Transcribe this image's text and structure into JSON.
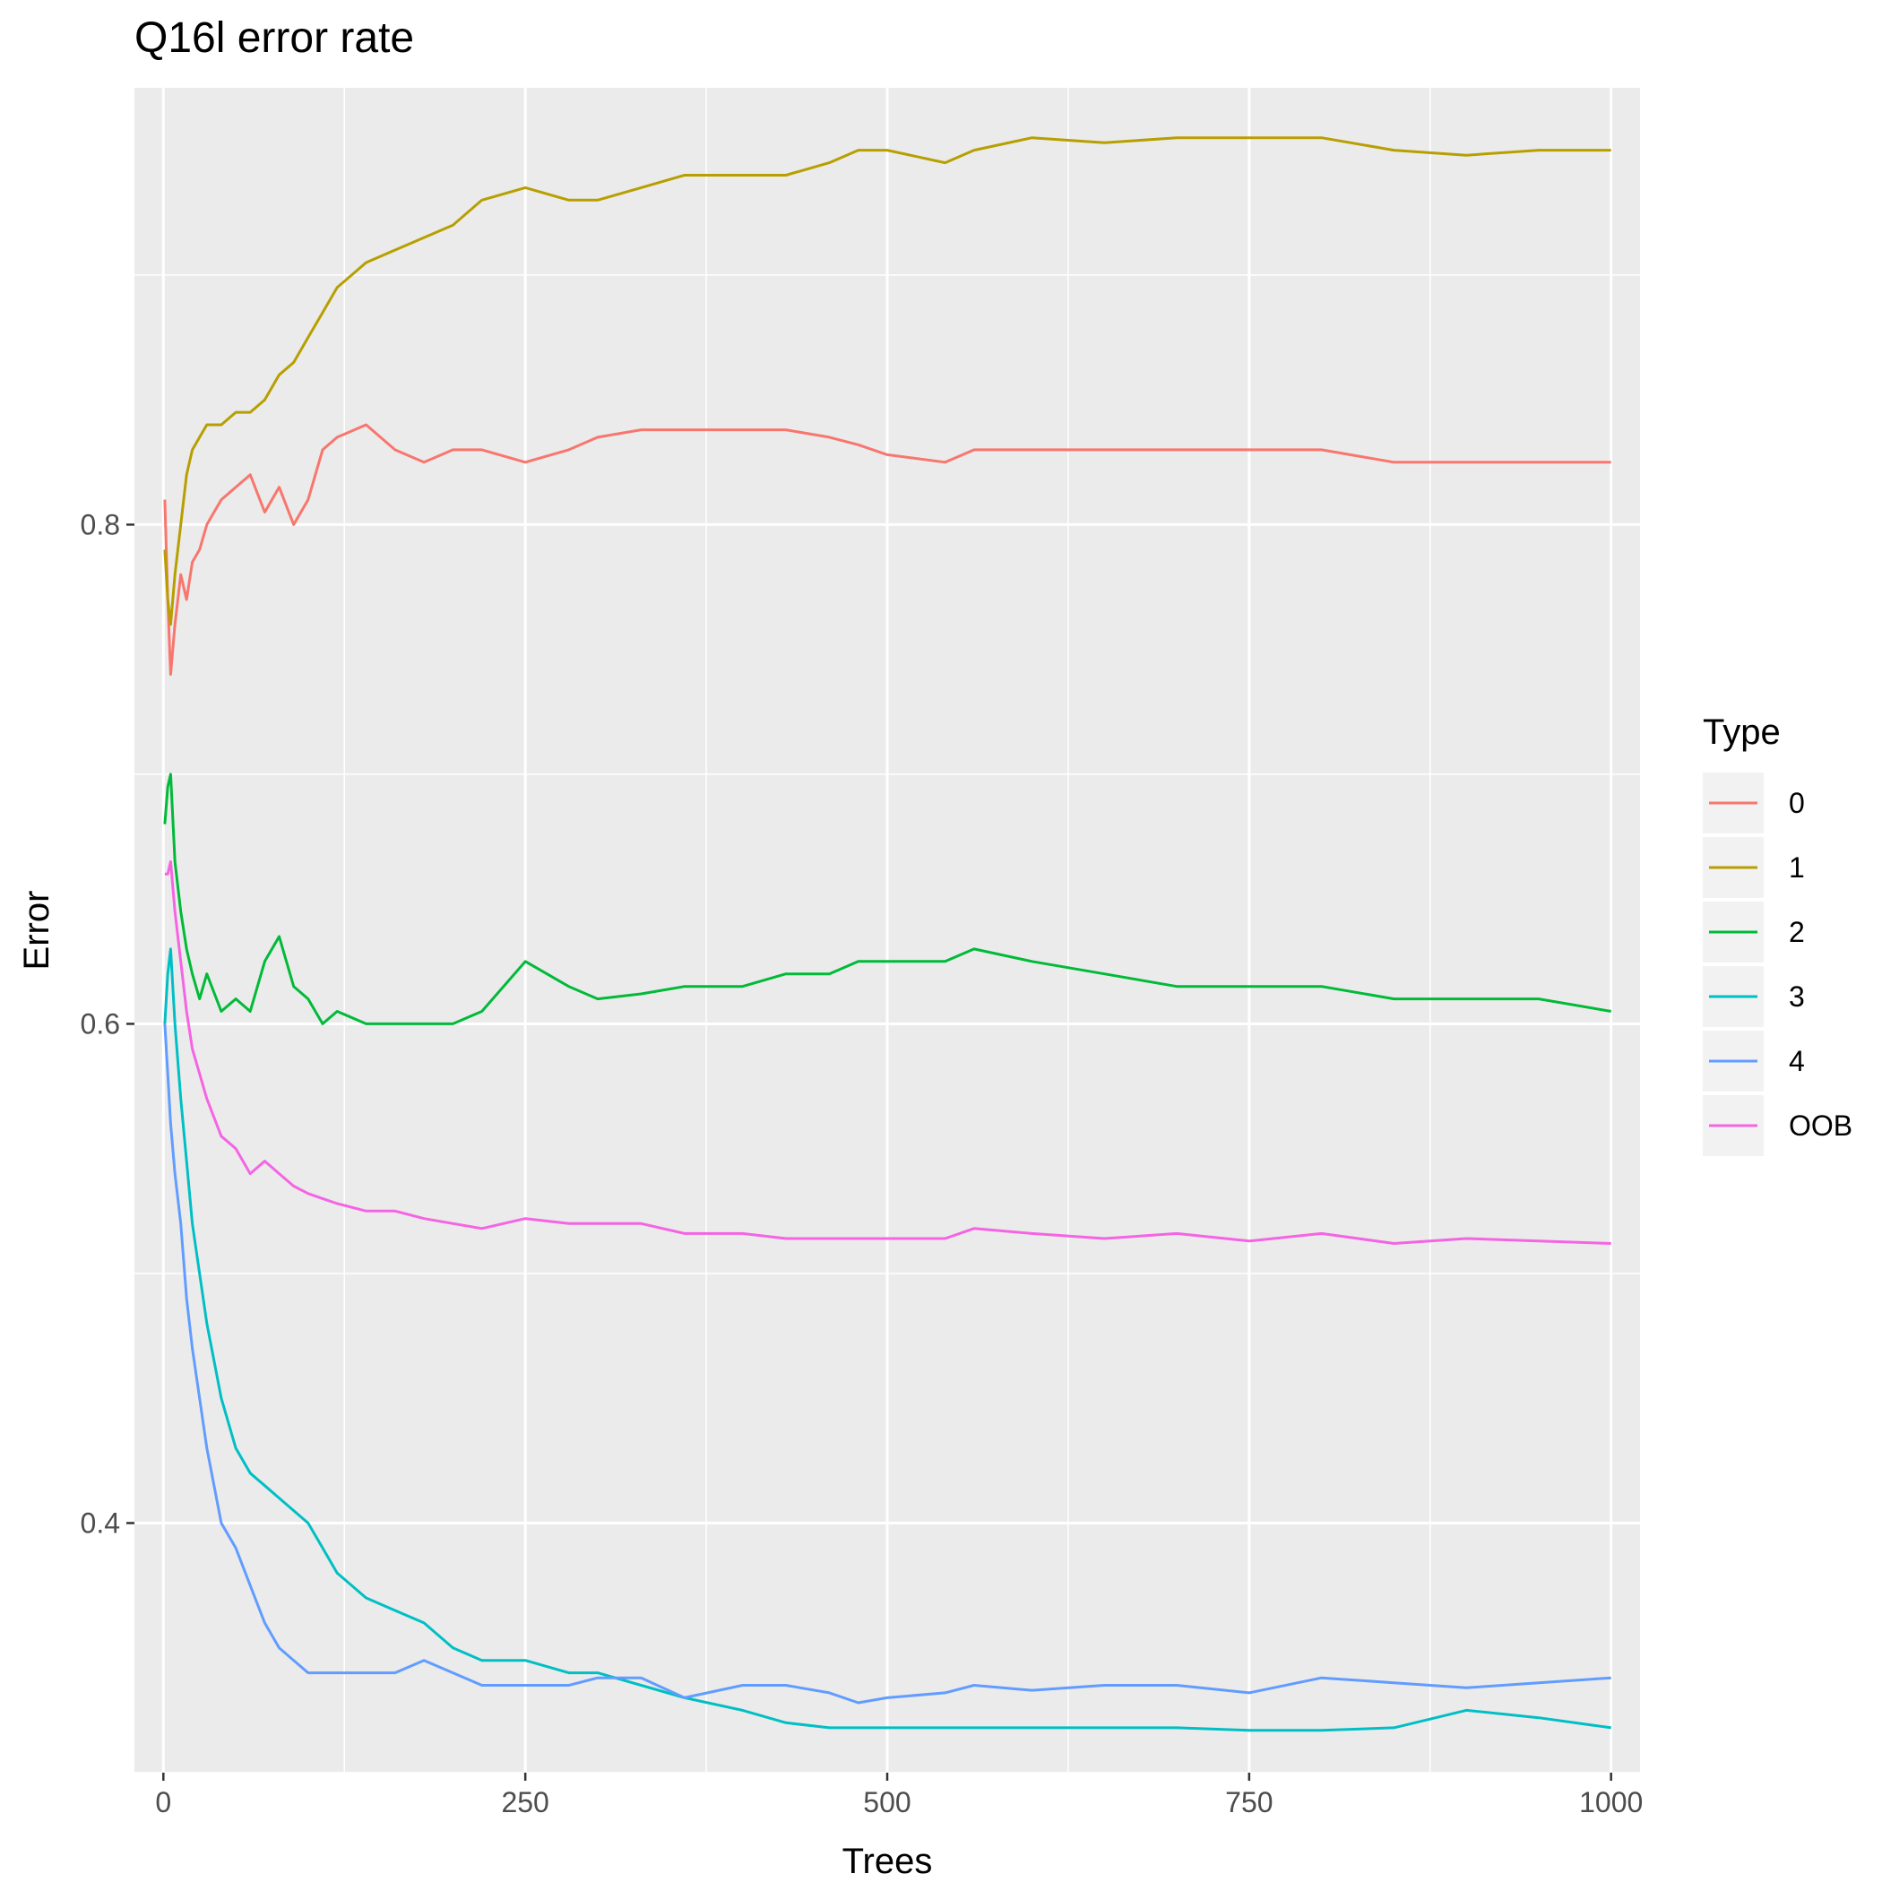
{
  "chart_data": {
    "type": "line",
    "title": "Q16l error rate",
    "xlabel": "Trees",
    "ylabel": "Error",
    "xlim": [
      -20,
      1020
    ],
    "ylim": [
      0.3,
      0.975
    ],
    "xticks": [
      0,
      250,
      500,
      750,
      1000
    ],
    "xtick_labels": [
      "0",
      "250",
      "500",
      "750",
      "1000"
    ],
    "yticks": [
      0.4,
      0.6,
      0.8
    ],
    "ytick_labels": [
      "0.4",
      "0.6",
      "0.8"
    ],
    "grid": true,
    "panel_background": "#ebebeb",
    "legend": {
      "title": "Type",
      "position": "right"
    },
    "series": [
      {
        "name": "0",
        "color": "#F8766D",
        "x": [
          1,
          3,
          5,
          8,
          12,
          16,
          20,
          25,
          30,
          40,
          50,
          60,
          70,
          80,
          90,
          100,
          110,
          120,
          140,
          160,
          180,
          200,
          220,
          250,
          280,
          300,
          330,
          360,
          400,
          430,
          460,
          480,
          500,
          540,
          560,
          600,
          650,
          700,
          750,
          800,
          850,
          900,
          950,
          1000
        ],
        "y": [
          0.81,
          0.77,
          0.74,
          0.76,
          0.78,
          0.77,
          0.785,
          0.79,
          0.8,
          0.81,
          0.815,
          0.82,
          0.805,
          0.815,
          0.8,
          0.81,
          0.83,
          0.835,
          0.84,
          0.83,
          0.825,
          0.83,
          0.83,
          0.825,
          0.83,
          0.835,
          0.838,
          0.838,
          0.838,
          0.838,
          0.835,
          0.832,
          0.828,
          0.825,
          0.83,
          0.83,
          0.83,
          0.83,
          0.83,
          0.83,
          0.825,
          0.825,
          0.825,
          0.825
        ]
      },
      {
        "name": "1",
        "color": "#B79F00",
        "x": [
          1,
          3,
          5,
          8,
          12,
          16,
          20,
          25,
          30,
          40,
          50,
          60,
          70,
          80,
          90,
          100,
          110,
          120,
          140,
          160,
          180,
          200,
          220,
          250,
          280,
          300,
          330,
          360,
          400,
          430,
          460,
          480,
          500,
          540,
          560,
          600,
          650,
          700,
          750,
          800,
          850,
          900,
          950,
          1000
        ],
        "y": [
          0.79,
          0.77,
          0.76,
          0.78,
          0.8,
          0.82,
          0.83,
          0.835,
          0.84,
          0.84,
          0.845,
          0.845,
          0.85,
          0.86,
          0.865,
          0.875,
          0.885,
          0.895,
          0.905,
          0.91,
          0.915,
          0.92,
          0.93,
          0.935,
          0.93,
          0.93,
          0.935,
          0.94,
          0.94,
          0.94,
          0.945,
          0.95,
          0.95,
          0.945,
          0.95,
          0.955,
          0.953,
          0.955,
          0.955,
          0.955,
          0.95,
          0.948,
          0.95,
          0.95
        ]
      },
      {
        "name": "2",
        "color": "#00BA38",
        "x": [
          1,
          3,
          5,
          8,
          12,
          16,
          20,
          25,
          30,
          40,
          50,
          60,
          70,
          80,
          90,
          100,
          110,
          120,
          140,
          160,
          180,
          200,
          220,
          250,
          280,
          300,
          330,
          360,
          400,
          430,
          460,
          480,
          500,
          540,
          560,
          600,
          650,
          700,
          750,
          800,
          850,
          900,
          950,
          1000
        ],
        "y": [
          0.68,
          0.695,
          0.7,
          0.665,
          0.645,
          0.63,
          0.62,
          0.61,
          0.62,
          0.605,
          0.61,
          0.605,
          0.625,
          0.635,
          0.615,
          0.61,
          0.6,
          0.605,
          0.6,
          0.6,
          0.6,
          0.6,
          0.605,
          0.625,
          0.615,
          0.61,
          0.612,
          0.615,
          0.615,
          0.62,
          0.62,
          0.625,
          0.625,
          0.625,
          0.63,
          0.625,
          0.62,
          0.615,
          0.615,
          0.615,
          0.61,
          0.61,
          0.61,
          0.605
        ]
      },
      {
        "name": "3",
        "color": "#00BFC4",
        "x": [
          1,
          3,
          5,
          8,
          12,
          16,
          20,
          25,
          30,
          40,
          50,
          60,
          70,
          80,
          90,
          100,
          110,
          120,
          140,
          160,
          180,
          200,
          220,
          250,
          280,
          300,
          330,
          360,
          400,
          430,
          460,
          480,
          500,
          540,
          560,
          600,
          650,
          700,
          750,
          800,
          850,
          900,
          950,
          1000
        ],
        "y": [
          0.6,
          0.62,
          0.63,
          0.6,
          0.57,
          0.545,
          0.52,
          0.5,
          0.48,
          0.45,
          0.43,
          0.42,
          0.415,
          0.41,
          0.405,
          0.4,
          0.39,
          0.38,
          0.37,
          0.365,
          0.36,
          0.35,
          0.345,
          0.345,
          0.34,
          0.34,
          0.335,
          0.33,
          0.325,
          0.32,
          0.318,
          0.318,
          0.318,
          0.318,
          0.318,
          0.318,
          0.318,
          0.318,
          0.317,
          0.317,
          0.318,
          0.325,
          0.322,
          0.318
        ]
      },
      {
        "name": "4",
        "color": "#619CFF",
        "x": [
          1,
          3,
          5,
          8,
          12,
          16,
          20,
          25,
          30,
          40,
          50,
          60,
          70,
          80,
          90,
          100,
          110,
          120,
          140,
          160,
          180,
          200,
          220,
          250,
          280,
          300,
          330,
          360,
          400,
          430,
          460,
          480,
          500,
          540,
          560,
          600,
          650,
          700,
          750,
          800,
          850,
          900,
          950,
          1000
        ],
        "y": [
          0.6,
          0.58,
          0.56,
          0.54,
          0.52,
          0.49,
          0.47,
          0.45,
          0.43,
          0.4,
          0.39,
          0.375,
          0.36,
          0.35,
          0.345,
          0.34,
          0.34,
          0.34,
          0.34,
          0.34,
          0.345,
          0.34,
          0.335,
          0.335,
          0.335,
          0.338,
          0.338,
          0.33,
          0.335,
          0.335,
          0.332,
          0.328,
          0.33,
          0.332,
          0.335,
          0.333,
          0.335,
          0.335,
          0.332,
          0.338,
          0.336,
          0.334,
          0.336,
          0.338
        ]
      },
      {
        "name": "OOB",
        "color": "#F564E3",
        "x": [
          1,
          3,
          5,
          8,
          12,
          16,
          20,
          25,
          30,
          40,
          50,
          60,
          70,
          80,
          90,
          100,
          110,
          120,
          140,
          160,
          180,
          200,
          220,
          250,
          280,
          300,
          330,
          360,
          400,
          430,
          460,
          480,
          500,
          540,
          560,
          600,
          650,
          700,
          750,
          800,
          850,
          900,
          950,
          1000
        ],
        "y": [
          0.66,
          0.66,
          0.665,
          0.645,
          0.625,
          0.605,
          0.59,
          0.58,
          0.57,
          0.555,
          0.55,
          0.54,
          0.545,
          0.54,
          0.535,
          0.532,
          0.53,
          0.528,
          0.525,
          0.525,
          0.522,
          0.52,
          0.518,
          0.522,
          0.52,
          0.52,
          0.52,
          0.516,
          0.516,
          0.514,
          0.514,
          0.514,
          0.514,
          0.514,
          0.518,
          0.516,
          0.514,
          0.516,
          0.513,
          0.516,
          0.512,
          0.514,
          0.513,
          0.512
        ]
      }
    ]
  }
}
